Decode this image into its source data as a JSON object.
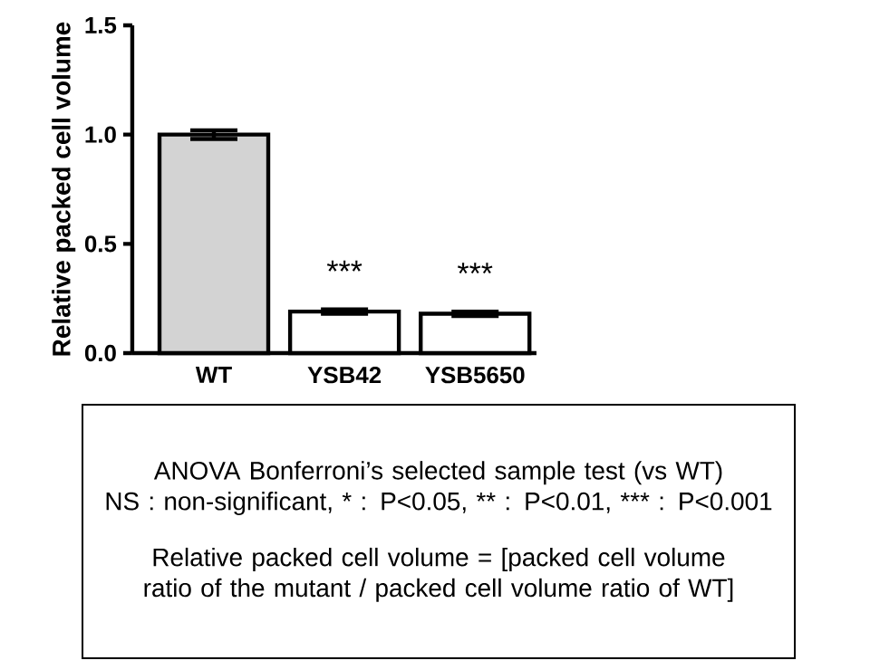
{
  "chart_data": {
    "type": "bar",
    "ylabel": "Relative packed cell volume",
    "categories": [
      "WT",
      "YSB42",
      "YSB5650"
    ],
    "values": [
      1.0,
      0.19,
      0.18
    ],
    "errors": [
      0.02,
      0.01,
      0.01
    ],
    "colors": [
      "#d3d3d3",
      "#ffffff",
      "#ffffff"
    ],
    "ylim": [
      0,
      1.5
    ],
    "yticks": [
      {
        "value": 0,
        "label": "0.0"
      },
      {
        "value": 0.5,
        "label": "0.5"
      },
      {
        "value": 1.0,
        "label": "1.0"
      },
      {
        "value": 1.5,
        "label": "1.5"
      }
    ],
    "grid": false,
    "annotations": [
      {
        "text": "***",
        "x": "YSB42",
        "y": 0.19
      },
      {
        "text": "***",
        "x": "YSB5650",
        "y": 0.18
      },
      "ANOVA Bonferroni’s selected sample test (vs WT)",
      "NS : non-significant, * : P<0.05, ** : P<0.01, *** : P<0.001",
      "Relative packed cell volume = [packed cell volume ratio of the mutant / packed cell volume ratio of WT]"
    ]
  }
}
